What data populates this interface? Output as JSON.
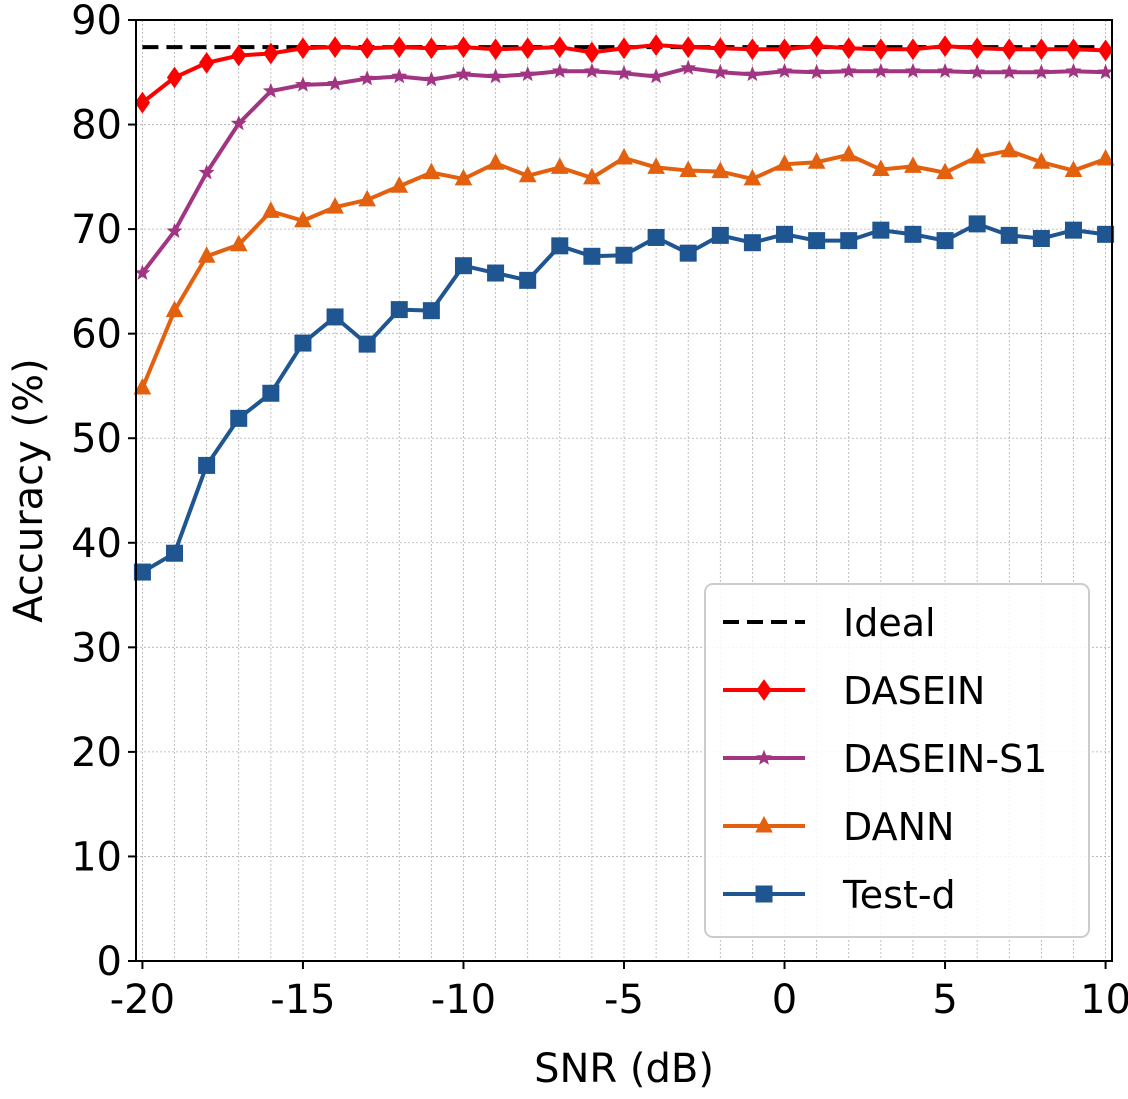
{
  "chart_data": {
    "type": "line",
    "title": "",
    "xlabel": "SNR (dB)",
    "ylabel": "Accuracy (%)",
    "xlim": [
      -20.2,
      10.2
    ],
    "ylim": [
      0,
      90
    ],
    "x": [
      -20,
      -19,
      -18,
      -17,
      -16,
      -15,
      -14,
      -13,
      -12,
      -11,
      -10,
      -9,
      -8,
      -7,
      -6,
      -5,
      -4,
      -3,
      -2,
      -1,
      0,
      1,
      2,
      3,
      4,
      5,
      6,
      7,
      8,
      9,
      10
    ],
    "xticks": [
      -20,
      -15,
      -10,
      -5,
      0,
      5,
      10
    ],
    "xtick_labels": [
      "-20",
      "-15",
      "-10",
      "-5",
      "0",
      "5",
      "10"
    ],
    "yticks": [
      0,
      10,
      20,
      30,
      40,
      50,
      60,
      70,
      80,
      90
    ],
    "ytick_labels": [
      "0",
      "10",
      "20",
      "30",
      "40",
      "50",
      "60",
      "70",
      "80",
      "90"
    ],
    "grid": true,
    "legend_position": "bottom-right",
    "series": [
      {
        "name": "Ideal",
        "color": "#000000",
        "marker": "none",
        "dashed": true,
        "values": [
          87.4,
          87.4,
          87.4,
          87.4,
          87.4,
          87.4,
          87.4,
          87.4,
          87.4,
          87.4,
          87.4,
          87.4,
          87.4,
          87.4,
          87.4,
          87.4,
          87.4,
          87.4,
          87.4,
          87.4,
          87.4,
          87.4,
          87.4,
          87.4,
          87.4,
          87.4,
          87.4,
          87.4,
          87.4,
          87.4,
          87.4
        ]
      },
      {
        "name": "DASEIN",
        "color": "#ff0000",
        "marker": "diamond",
        "dashed": false,
        "values": [
          82.1,
          84.5,
          85.9,
          86.6,
          86.8,
          87.3,
          87.4,
          87.3,
          87.4,
          87.3,
          87.4,
          87.2,
          87.3,
          87.4,
          86.9,
          87.3,
          87.6,
          87.4,
          87.3,
          87.2,
          87.2,
          87.5,
          87.3,
          87.2,
          87.2,
          87.5,
          87.3,
          87.2,
          87.2,
          87.2,
          87.1
        ]
      },
      {
        "name": "DASEIN-S1",
        "color": "#a23582",
        "marker": "star",
        "dashed": false,
        "values": [
          65.8,
          69.8,
          75.4,
          80.1,
          83.2,
          83.8,
          83.9,
          84.4,
          84.6,
          84.3,
          84.8,
          84.6,
          84.8,
          85.1,
          85.1,
          84.9,
          84.6,
          85.4,
          85.0,
          84.8,
          85.1,
          85.0,
          85.1,
          85.1,
          85.1,
          85.1,
          85.0,
          85.0,
          85.0,
          85.1,
          85.0
        ]
      },
      {
        "name": "DANN",
        "color": "#e3600f",
        "marker": "triangle",
        "dashed": false,
        "values": [
          54.8,
          62.2,
          67.4,
          68.5,
          71.7,
          70.8,
          72.1,
          72.8,
          74.1,
          75.4,
          74.8,
          76.3,
          75.1,
          75.9,
          74.9,
          76.8,
          75.9,
          75.6,
          75.5,
          74.8,
          76.2,
          76.4,
          77.1,
          75.7,
          76.0,
          75.4,
          76.9,
          77.5,
          76.4,
          75.6,
          76.7
        ]
      },
      {
        "name": "Test-d",
        "color": "#1f5591",
        "marker": "square",
        "dashed": false,
        "values": [
          37.2,
          39.0,
          47.4,
          51.9,
          54.3,
          59.1,
          61.6,
          59.0,
          62.3,
          62.2,
          66.5,
          65.8,
          65.1,
          68.4,
          67.4,
          67.5,
          69.2,
          67.7,
          69.4,
          68.7,
          69.5,
          68.9,
          68.9,
          69.9,
          69.5,
          68.9,
          70.5,
          69.4,
          69.1,
          69.9,
          69.5
        ]
      }
    ]
  }
}
